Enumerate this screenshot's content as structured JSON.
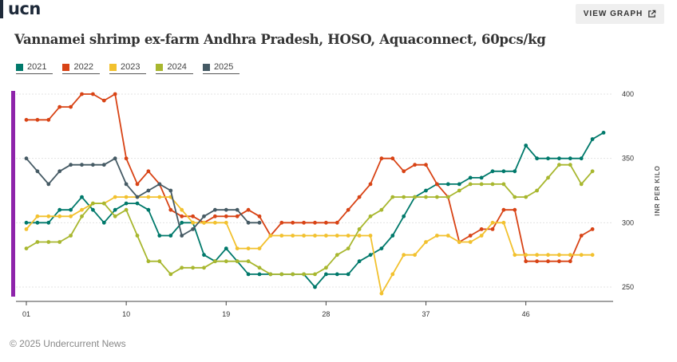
{
  "brand": {
    "logo": "ucn"
  },
  "header": {
    "view_graph_label": "VIEW GRAPH",
    "view_graph_icon": "external-link-icon"
  },
  "footer": {
    "copyright": "© 2025 Undercurrent News"
  },
  "chart_data": {
    "type": "line",
    "title": "Vannamei shrimp ex-farm Andhra Pradesh, HOSO, Aquaconnect, 60pcs/kg",
    "ylabel": "INR PER KILO",
    "xlabel": "",
    "ylim": [
      242,
      403
    ],
    "yticks": [
      250,
      300,
      350,
      400
    ],
    "xlim": [
      1,
      53
    ],
    "xticks": [
      1,
      10,
      19,
      28,
      37,
      46
    ],
    "xtick_labels": [
      "01",
      "10",
      "19",
      "28",
      "37",
      "46"
    ],
    "grid": true,
    "legend_position": "top-left",
    "series": [
      {
        "name": "2021",
        "color": "#00796b",
        "points": [
          [
            1,
            300
          ],
          [
            2,
            300
          ],
          [
            3,
            300
          ],
          [
            4,
            310
          ],
          [
            5,
            310
          ],
          [
            6,
            320
          ],
          [
            7,
            310
          ],
          [
            8,
            300
          ],
          [
            9,
            310
          ],
          [
            10,
            315
          ],
          [
            11,
            315
          ],
          [
            12,
            310
          ],
          [
            13,
            290
          ],
          [
            14,
            290
          ],
          [
            15,
            300
          ],
          [
            16,
            300
          ],
          [
            17,
            275
          ],
          [
            18,
            270
          ],
          [
            19,
            280
          ],
          [
            20,
            270
          ],
          [
            21,
            260
          ],
          [
            22,
            260
          ],
          [
            23,
            260
          ],
          [
            24,
            260
          ],
          [
            25,
            260
          ],
          [
            26,
            260
          ],
          [
            27,
            250
          ],
          [
            28,
            260
          ],
          [
            29,
            260
          ],
          [
            30,
            260
          ],
          [
            31,
            270
          ],
          [
            32,
            275
          ],
          [
            33,
            280
          ],
          [
            34,
            290
          ],
          [
            35,
            305
          ],
          [
            36,
            320
          ],
          [
            37,
            325
          ],
          [
            38,
            330
          ],
          [
            39,
            330
          ],
          [
            40,
            330
          ],
          [
            41,
            335
          ],
          [
            42,
            335
          ],
          [
            43,
            340
          ],
          [
            44,
            340
          ],
          [
            45,
            340
          ],
          [
            46,
            360
          ],
          [
            47,
            350
          ],
          [
            48,
            350
          ],
          [
            49,
            350
          ],
          [
            50,
            350
          ],
          [
            51,
            350
          ],
          [
            52,
            365
          ],
          [
            53,
            370
          ]
        ]
      },
      {
        "name": "2022",
        "color": "#d84315",
        "points": [
          [
            1,
            380
          ],
          [
            2,
            380
          ],
          [
            3,
            380
          ],
          [
            4,
            390
          ],
          [
            5,
            390
          ],
          [
            6,
            400
          ],
          [
            7,
            400
          ],
          [
            8,
            395
          ],
          [
            9,
            400
          ],
          [
            10,
            350
          ],
          [
            11,
            330
          ],
          [
            12,
            340
          ],
          [
            13,
            330
          ],
          [
            14,
            310
          ],
          [
            15,
            305
          ],
          [
            16,
            305
          ],
          [
            17,
            300
          ],
          [
            18,
            305
          ],
          [
            19,
            305
          ],
          [
            20,
            305
          ],
          [
            21,
            310
          ],
          [
            22,
            305
          ],
          [
            23,
            290
          ],
          [
            24,
            300
          ],
          [
            25,
            300
          ],
          [
            26,
            300
          ],
          [
            27,
            300
          ],
          [
            28,
            300
          ],
          [
            29,
            300
          ],
          [
            30,
            310
          ],
          [
            31,
            320
          ],
          [
            32,
            330
          ],
          [
            33,
            350
          ],
          [
            34,
            350
          ],
          [
            35,
            340
          ],
          [
            36,
            345
          ],
          [
            37,
            345
          ],
          [
            38,
            330
          ],
          [
            39,
            320
          ],
          [
            40,
            285
          ],
          [
            41,
            290
          ],
          [
            42,
            295
          ],
          [
            43,
            295
          ],
          [
            44,
            310
          ],
          [
            45,
            310
          ],
          [
            46,
            270
          ],
          [
            47,
            270
          ],
          [
            48,
            270
          ],
          [
            49,
            270
          ],
          [
            50,
            270
          ],
          [
            51,
            290
          ],
          [
            52,
            295
          ]
        ]
      },
      {
        "name": "2023",
        "color": "#f2c12e",
        "points": [
          [
            1,
            295
          ],
          [
            2,
            305
          ],
          [
            3,
            305
          ],
          [
            4,
            305
          ],
          [
            5,
            305
          ],
          [
            6,
            310
          ],
          [
            7,
            315
          ],
          [
            8,
            315
          ],
          [
            9,
            320
          ],
          [
            10,
            320
          ],
          [
            11,
            320
          ],
          [
            12,
            320
          ],
          [
            13,
            320
          ],
          [
            14,
            320
          ],
          [
            15,
            310
          ],
          [
            16,
            300
          ],
          [
            17,
            300
          ],
          [
            18,
            300
          ],
          [
            19,
            300
          ],
          [
            20,
            280
          ],
          [
            21,
            280
          ],
          [
            22,
            280
          ],
          [
            23,
            290
          ],
          [
            24,
            290
          ],
          [
            25,
            290
          ],
          [
            26,
            290
          ],
          [
            27,
            290
          ],
          [
            28,
            290
          ],
          [
            29,
            290
          ],
          [
            30,
            290
          ],
          [
            31,
            290
          ],
          [
            32,
            290
          ],
          [
            33,
            245
          ],
          [
            34,
            260
          ],
          [
            35,
            275
          ],
          [
            36,
            275
          ],
          [
            37,
            285
          ],
          [
            38,
            290
          ],
          [
            39,
            290
          ],
          [
            40,
            285
          ],
          [
            41,
            285
          ],
          [
            42,
            290
          ],
          [
            43,
            300
          ],
          [
            44,
            300
          ],
          [
            45,
            275
          ],
          [
            46,
            275
          ],
          [
            47,
            275
          ],
          [
            48,
            275
          ],
          [
            49,
            275
          ],
          [
            50,
            275
          ],
          [
            51,
            275
          ],
          [
            52,
            275
          ]
        ]
      },
      {
        "name": "2024",
        "color": "#a8b72f",
        "points": [
          [
            1,
            280
          ],
          [
            2,
            285
          ],
          [
            3,
            285
          ],
          [
            4,
            285
          ],
          [
            5,
            290
          ],
          [
            6,
            305
          ],
          [
            7,
            315
          ],
          [
            8,
            315
          ],
          [
            9,
            305
          ],
          [
            10,
            310
          ],
          [
            11,
            290
          ],
          [
            12,
            270
          ],
          [
            13,
            270
          ],
          [
            14,
            260
          ],
          [
            15,
            265
          ],
          [
            16,
            265
          ],
          [
            17,
            265
          ],
          [
            18,
            270
          ],
          [
            19,
            270
          ],
          [
            20,
            270
          ],
          [
            21,
            270
          ],
          [
            22,
            265
          ],
          [
            23,
            260
          ],
          [
            24,
            260
          ],
          [
            25,
            260
          ],
          [
            26,
            260
          ],
          [
            27,
            260
          ],
          [
            28,
            265
          ],
          [
            29,
            275
          ],
          [
            30,
            280
          ],
          [
            31,
            295
          ],
          [
            32,
            305
          ],
          [
            33,
            310
          ],
          [
            34,
            320
          ],
          [
            35,
            320
          ],
          [
            36,
            320
          ],
          [
            37,
            320
          ],
          [
            38,
            320
          ],
          [
            39,
            320
          ],
          [
            40,
            325
          ],
          [
            41,
            330
          ],
          [
            42,
            330
          ],
          [
            43,
            330
          ],
          [
            44,
            330
          ],
          [
            45,
            320
          ],
          [
            46,
            320
          ],
          [
            47,
            325
          ],
          [
            48,
            335
          ],
          [
            49,
            345
          ],
          [
            50,
            345
          ],
          [
            51,
            330
          ],
          [
            52,
            340
          ]
        ]
      },
      {
        "name": "2025",
        "color": "#455a64",
        "points": [
          [
            1,
            350
          ],
          [
            2,
            340
          ],
          [
            3,
            330
          ],
          [
            4,
            340
          ],
          [
            5,
            345
          ],
          [
            6,
            345
          ],
          [
            7,
            345
          ],
          [
            8,
            345
          ],
          [
            9,
            350
          ],
          [
            10,
            330
          ],
          [
            11,
            320
          ],
          [
            12,
            325
          ],
          [
            13,
            330
          ],
          [
            14,
            325
          ],
          [
            15,
            290
          ],
          [
            16,
            295
          ],
          [
            17,
            305
          ],
          [
            18,
            310
          ],
          [
            19,
            310
          ],
          [
            20,
            310
          ],
          [
            21,
            300
          ],
          [
            22,
            300
          ]
        ]
      }
    ]
  }
}
